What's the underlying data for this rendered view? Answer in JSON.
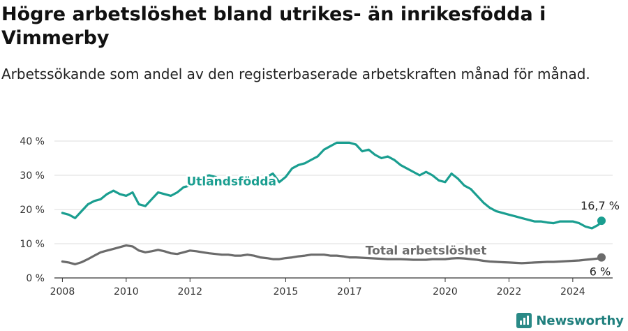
{
  "title": "Högre arbetslöshet bland utrikes- än inrikesfödda i Vimmerby",
  "subtitle": "Arbetssökande som andel av den registerbaserade arbetskraften månad för månad.",
  "logo": {
    "text": "Newsworthy",
    "icon": "bar-chart-logo-icon"
  },
  "colors": {
    "foreign_born": "#1a9e90",
    "total": "#6b6b6b",
    "grid": "#dddddd",
    "axis": "#333333"
  },
  "chart_data": {
    "type": "line",
    "title": "Högre arbetslöshet bland utrikes- än inrikesfödda i Vimmerby",
    "subtitle": "Arbetssökande som andel av den registerbaserade arbetskraften månad för månad.",
    "xlabel": "",
    "ylabel": "",
    "xlim": [
      2007.75,
      2025.25
    ],
    "ylim": [
      0,
      40
    ],
    "grid": true,
    "legend": "inline labels",
    "x_ticks": [
      2008,
      2010,
      2012,
      2015,
      2017,
      2020,
      2022,
      2024
    ],
    "x_tick_labels": [
      "2008",
      "2010",
      "2012",
      "2015",
      "2017",
      "2020",
      "2022",
      "2024"
    ],
    "y_ticks": [
      0,
      10,
      20,
      30,
      40
    ],
    "y_tick_labels": [
      "0 %",
      "10 %",
      "20 %",
      "30 %",
      "40 %"
    ],
    "series": [
      {
        "name": "Utlandsfödda",
        "color": "#1a9e90",
        "end_label": "16,7 %",
        "x": [
          2008.0,
          2008.2,
          2008.4,
          2008.6,
          2008.8,
          2009.0,
          2009.2,
          2009.4,
          2009.6,
          2009.8,
          2010.0,
          2010.2,
          2010.4,
          2010.6,
          2010.8,
          2011.0,
          2011.2,
          2011.4,
          2011.6,
          2011.8,
          2012.0,
          2012.2,
          2012.4,
          2012.6,
          2012.8,
          2013.0,
          2013.2,
          2013.4,
          2013.6,
          2013.8,
          2014.0,
          2014.2,
          2014.4,
          2014.6,
          2014.8,
          2015.0,
          2015.2,
          2015.4,
          2015.6,
          2015.8,
          2016.0,
          2016.2,
          2016.4,
          2016.6,
          2016.8,
          2017.0,
          2017.2,
          2017.4,
          2017.6,
          2017.8,
          2018.0,
          2018.2,
          2018.4,
          2018.6,
          2018.8,
          2019.0,
          2019.2,
          2019.4,
          2019.6,
          2019.8,
          2020.0,
          2020.2,
          2020.4,
          2020.6,
          2020.8,
          2021.0,
          2021.2,
          2021.4,
          2021.6,
          2021.8,
          2022.0,
          2022.2,
          2022.4,
          2022.6,
          2022.8,
          2023.0,
          2023.2,
          2023.4,
          2023.6,
          2023.8,
          2024.0,
          2024.2,
          2024.4,
          2024.6,
          2024.8,
          2024.9
        ],
        "values": [
          19,
          18.5,
          17.5,
          19.5,
          21.5,
          22.5,
          23,
          24.5,
          25.5,
          24.5,
          24,
          25,
          21.5,
          21,
          23,
          25,
          24.5,
          24,
          25,
          26.5,
          27,
          28.5,
          29.5,
          30,
          29.5,
          28.5,
          27.5,
          27,
          28,
          28.5,
          28.5,
          29,
          29.5,
          30.5,
          28,
          29.5,
          32,
          33,
          33.5,
          34.5,
          35.5,
          37.5,
          38.5,
          39.5,
          39.5,
          39.5,
          39,
          37,
          37.5,
          36,
          35,
          35.5,
          34.5,
          33,
          32,
          31,
          30,
          31,
          30,
          28.5,
          28,
          30.5,
          29,
          27,
          26,
          24,
          22,
          20.5,
          19.5,
          19,
          18.5,
          18,
          17.5,
          17,
          16.5,
          16.5,
          16.2,
          16,
          16.5,
          16.5,
          16.5,
          16,
          15,
          14.5,
          15.5,
          16.7
        ]
      },
      {
        "name": "Total arbetslöshet",
        "color": "#6b6b6b",
        "end_label": "6 %",
        "x": [
          2008.0,
          2008.2,
          2008.4,
          2008.6,
          2008.8,
          2009.0,
          2009.2,
          2009.4,
          2009.6,
          2009.8,
          2010.0,
          2010.2,
          2010.4,
          2010.6,
          2010.8,
          2011.0,
          2011.2,
          2011.4,
          2011.6,
          2011.8,
          2012.0,
          2012.2,
          2012.4,
          2012.6,
          2012.8,
          2013.0,
          2013.2,
          2013.4,
          2013.6,
          2013.8,
          2014.0,
          2014.2,
          2014.4,
          2014.6,
          2014.8,
          2015.0,
          2015.2,
          2015.4,
          2015.6,
          2015.8,
          2016.0,
          2016.2,
          2016.4,
          2016.6,
          2016.8,
          2017.0,
          2017.2,
          2017.4,
          2017.6,
          2017.8,
          2018.0,
          2018.2,
          2018.4,
          2018.6,
          2018.8,
          2019.0,
          2019.2,
          2019.4,
          2019.6,
          2019.8,
          2020.0,
          2020.2,
          2020.4,
          2020.6,
          2020.8,
          2021.0,
          2021.2,
          2021.4,
          2021.6,
          2021.8,
          2022.0,
          2022.2,
          2022.4,
          2022.6,
          2022.8,
          2023.0,
          2023.2,
          2023.4,
          2023.6,
          2023.8,
          2024.0,
          2024.2,
          2024.4,
          2024.6,
          2024.8,
          2024.9
        ],
        "values": [
          4.8,
          4.5,
          4.0,
          4.6,
          5.5,
          6.5,
          7.5,
          8.0,
          8.5,
          9.0,
          9.5,
          9.2,
          8.0,
          7.5,
          7.8,
          8.2,
          7.8,
          7.2,
          7.0,
          7.5,
          8.0,
          7.8,
          7.5,
          7.2,
          7.0,
          6.8,
          6.8,
          6.5,
          6.5,
          6.8,
          6.5,
          6.0,
          5.8,
          5.5,
          5.5,
          5.8,
          6.0,
          6.3,
          6.5,
          6.8,
          6.8,
          6.8,
          6.5,
          6.5,
          6.3,
          6.0,
          6.0,
          5.9,
          5.8,
          5.7,
          5.6,
          5.5,
          5.5,
          5.5,
          5.4,
          5.3,
          5.3,
          5.3,
          5.5,
          5.5,
          5.5,
          5.7,
          5.8,
          5.7,
          5.5,
          5.3,
          5.0,
          4.8,
          4.7,
          4.6,
          4.5,
          4.4,
          4.3,
          4.4,
          4.5,
          4.6,
          4.7,
          4.7,
          4.8,
          4.9,
          5.0,
          5.1,
          5.3,
          5.5,
          5.7,
          6.0
        ]
      }
    ]
  }
}
